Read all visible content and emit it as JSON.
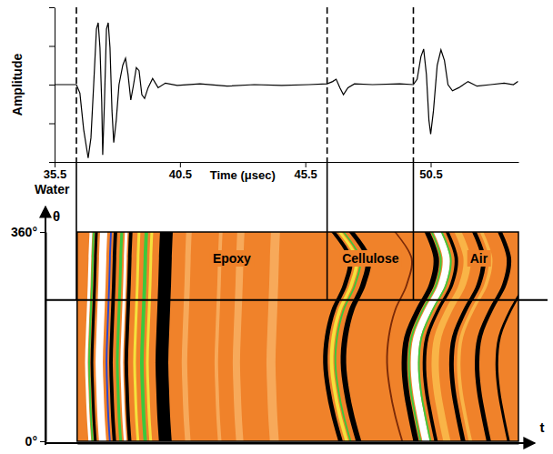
{
  "chart_data": [
    {
      "type": "line",
      "xlabel": "Time (μsec)",
      "ylabel": "Amplitude",
      "xlim": [
        35.5,
        54
      ],
      "xticks": [
        35.5,
        40.5,
        45.5,
        50.5
      ],
      "ylim": [
        -1,
        1
      ],
      "yticks": [
        -1,
        -0.5,
        0,
        0.5,
        1
      ],
      "tick_labels": "x",
      "color": "#000000",
      "x": [
        35.5,
        36.37,
        36.51,
        36.66,
        36.84,
        36.95,
        37.06,
        37.17,
        37.24,
        37.31,
        37.38,
        37.42,
        37.49,
        37.57,
        37.64,
        37.71,
        37.79,
        37.86,
        37.96,
        38.07,
        38.22,
        38.33,
        38.43,
        38.54,
        38.65,
        38.76,
        38.87,
        38.98,
        39.09,
        39.23,
        39.41,
        39.63,
        39.92,
        40.39,
        41.3,
        42.38,
        43.47,
        44.56,
        45.64,
        46.37,
        46.59,
        46.73,
        46.88,
        47.02,
        47.2,
        47.46,
        48.18,
        49.27,
        49.81,
        49.96,
        50.11,
        50.22,
        50.33,
        50.43,
        50.5,
        50.61,
        50.76,
        50.91,
        51.05,
        51.19,
        51.37,
        51.62,
        51.99,
        52.35,
        52.89,
        53.43,
        53.8,
        53.98
      ],
      "values": [
        0,
        0,
        -0.11,
        -0.58,
        -0.95,
        -0.69,
        0,
        0.72,
        0.8,
        0.48,
        -0.22,
        -0.91,
        -0.22,
        0.72,
        0.8,
        0.48,
        -0.34,
        -0.75,
        -0.46,
        0,
        0.25,
        0.34,
        0.13,
        -0.2,
        0,
        0.22,
        0.18,
        -0.13,
        -0.18,
        -0.04,
        0.08,
        -0.04,
        0.02,
        -0.01,
        0.01,
        -0.02,
        0,
        -0.01,
        0,
        0.01,
        0.04,
        0.07,
        -0.04,
        -0.13,
        -0.04,
        0.01,
        0,
        0.01,
        0,
        0.07,
        0.36,
        0.46,
        0.13,
        -0.46,
        -0.64,
        -0.34,
        0.25,
        0.45,
        0.31,
        0,
        -0.08,
        -0.04,
        0.04,
        -0.02,
        0,
        0.02,
        0,
        0.04
      ],
      "markers": [
        36.37,
        46.37,
        49.81
      ]
    },
    {
      "type": "image",
      "xlabel": "t",
      "ylabel": "θ",
      "xlim": [
        36.4,
        54
      ],
      "ylim": [
        0,
        360
      ],
      "yticks": [
        {
          "value": 0,
          "label": "0°"
        },
        {
          "value": 360,
          "label": "360°"
        }
      ],
      "tick_labels": "y",
      "color": "#f0822a",
      "slice_theta": 243,
      "theta": [
        0,
        45,
        90,
        135,
        180,
        225,
        270,
        315,
        360
      ],
      "annotations": [
        {
          "text": "Water",
          "x": 35.4
        },
        {
          "text": "Epoxy",
          "x": 42.57
        },
        {
          "text": "Cellulose",
          "x": 48.1
        },
        {
          "text": "Air",
          "x": 52.42
        }
      ],
      "stripes": [
        {
          "color": "#ffffff",
          "width": 0.11,
          "t": [
            36.91,
            36.84,
            36.8,
            36.77,
            36.8,
            36.84,
            36.88,
            36.91,
            36.95
          ]
        },
        {
          "color": "#3cc83c",
          "width": 0.07,
          "t": [
            37.02,
            36.95,
            36.91,
            36.88,
            36.91,
            36.95,
            36.99,
            37.02,
            37.06
          ]
        },
        {
          "color": "#000000",
          "width": 0.11,
          "t": [
            37.13,
            37.06,
            37.02,
            36.99,
            37.02,
            37.06,
            37.1,
            37.13,
            37.17
          ]
        },
        {
          "color": "#ffffff",
          "width": 0.29,
          "t": [
            37.42,
            37.35,
            37.31,
            37.28,
            37.31,
            37.35,
            37.39,
            37.42,
            37.46
          ]
        },
        {
          "color": "#2846d2",
          "width": 0.07,
          "t": [
            37.71,
            37.64,
            37.6,
            37.57,
            37.6,
            37.64,
            37.68,
            37.71,
            37.75
          ]
        },
        {
          "color": "#000000",
          "width": 0.14,
          "t": [
            37.89,
            37.82,
            37.78,
            37.75,
            37.78,
            37.82,
            37.86,
            37.89,
            37.93
          ]
        },
        {
          "color": "#3cc83c",
          "width": 0.11,
          "t": [
            38.14,
            38.07,
            38.03,
            38.0,
            38.03,
            38.07,
            38.11,
            38.14,
            38.18
          ]
        },
        {
          "color": "#ffffff",
          "width": 0.11,
          "t": [
            38.32,
            38.25,
            38.21,
            38.18,
            38.21,
            38.25,
            38.29,
            38.32,
            38.36
          ]
        },
        {
          "color": "#000000",
          "width": 0.14,
          "t": [
            38.5,
            38.43,
            38.39,
            38.36,
            38.39,
            38.43,
            38.47,
            38.5,
            38.54
          ]
        },
        {
          "color": "#f5e13c",
          "width": 0.11,
          "t": [
            38.83,
            38.76,
            38.72,
            38.69,
            38.72,
            38.76,
            38.8,
            38.83,
            38.87
          ]
        },
        {
          "color": "#3cc83c",
          "width": 0.14,
          "t": [
            39.12,
            39.05,
            39.01,
            38.98,
            39.01,
            39.05,
            39.09,
            39.12,
            39.16
          ]
        },
        {
          "color": "#f5e13c",
          "width": 0.11,
          "t": [
            39.34,
            39.27,
            39.23,
            39.2,
            39.23,
            39.27,
            39.31,
            39.34,
            39.38
          ]
        },
        {
          "color": "#000000",
          "width": 0.51,
          "t": [
            39.92,
            39.85,
            39.81,
            39.78,
            39.81,
            39.85,
            39.89,
            39.92,
            39.96
          ]
        },
        {
          "color": "#f7a95a",
          "width": 0.22,
          "t": [
            40.82,
            40.75,
            40.71,
            40.68,
            40.71,
            40.75,
            40.79,
            40.82,
            40.86
          ]
        },
        {
          "color": "#f7a95a",
          "width": 0.14,
          "t": [
            42.09,
            42.02,
            41.98,
            41.95,
            41.98,
            42.02,
            42.06,
            42.09,
            42.13
          ]
        },
        {
          "color": "#f7a95a",
          "width": 0.29,
          "t": [
            42.89,
            42.82,
            42.78,
            42.75,
            42.78,
            42.82,
            42.86,
            42.89,
            42.93
          ]
        },
        {
          "color": "#f7a95a",
          "width": 0.36,
          "t": [
            44.27,
            44.2,
            44.16,
            44.13,
            44.16,
            44.2,
            44.24,
            44.27,
            44.31
          ]
        },
        {
          "color": "#000000",
          "width": 0.18,
          "t": [
            46.91,
            46.62,
            46.41,
            46.3,
            46.37,
            46.62,
            47.09,
            47.28,
            46.62
          ]
        },
        {
          "color": "#f5e13c",
          "width": 0.14,
          "t": [
            47.16,
            46.87,
            46.66,
            46.55,
            46.62,
            46.87,
            47.34,
            47.53,
            46.87
          ]
        },
        {
          "color": "#3cc83c",
          "width": 0.07,
          "t": [
            47.31,
            47.02,
            46.81,
            46.7,
            46.77,
            47.02,
            47.49,
            47.68,
            47.02
          ]
        },
        {
          "color": "#000000",
          "width": 0.22,
          "t": [
            47.63,
            47.34,
            47.13,
            47.02,
            47.09,
            47.34,
            47.81,
            48.0,
            47.34
          ]
        },
        {
          "color": "#7a2a08",
          "width": 0.07,
          "t": [
            49.37,
            49.08,
            48.87,
            48.76,
            48.83,
            49.08,
            49.55,
            49.74,
            49.08
          ]
        },
        {
          "color": "#000000",
          "width": 0.22,
          "t": [
            49.92,
            49.7,
            49.52,
            49.45,
            49.56,
            49.99,
            50.54,
            50.72,
            50.36
          ]
        },
        {
          "color": "#3cc83c",
          "width": 0.07,
          "t": [
            50.1,
            49.88,
            49.7,
            49.63,
            49.74,
            50.17,
            50.72,
            50.9,
            50.54
          ]
        },
        {
          "color": "#ffffff",
          "width": 0.29,
          "t": [
            50.32,
            50.1,
            49.92,
            49.85,
            49.96,
            50.39,
            50.94,
            51.12,
            50.76
          ]
        },
        {
          "color": "#3cc83c",
          "width": 0.07,
          "t": [
            50.5,
            50.28,
            50.1,
            50.03,
            50.14,
            50.57,
            51.12,
            51.3,
            50.94
          ]
        },
        {
          "color": "#000000",
          "width": 0.14,
          "t": [
            50.72,
            50.5,
            50.32,
            50.25,
            50.36,
            50.79,
            51.34,
            51.52,
            51.16
          ]
        },
        {
          "color": "#f9b447",
          "width": 0.29,
          "t": [
            51.15,
            50.93,
            50.75,
            50.68,
            50.79,
            51.22,
            51.77,
            51.95,
            51.59
          ]
        },
        {
          "color": "#000000",
          "width": 0.18,
          "t": [
            51.8,
            51.58,
            51.4,
            51.33,
            51.44,
            51.87,
            52.42,
            52.6,
            52.24
          ]
        },
        {
          "color": "#f9b447",
          "width": 0.14,
          "t": [
            52.09,
            51.87,
            51.69,
            51.62,
            51.73,
            52.16,
            52.71,
            52.89,
            52.53
          ]
        },
        {
          "color": "#000000",
          "width": 0.18,
          "t": [
            52.82,
            52.6,
            52.42,
            52.35,
            52.46,
            52.89,
            53.44,
            53.62,
            53.26
          ]
        },
        {
          "color": "#000000",
          "width": 0.11,
          "t": [
            53.61,
            53.39,
            53.21,
            53.14,
            53.25,
            53.68,
            54.23,
            54.41,
            54.05
          ]
        }
      ]
    }
  ]
}
